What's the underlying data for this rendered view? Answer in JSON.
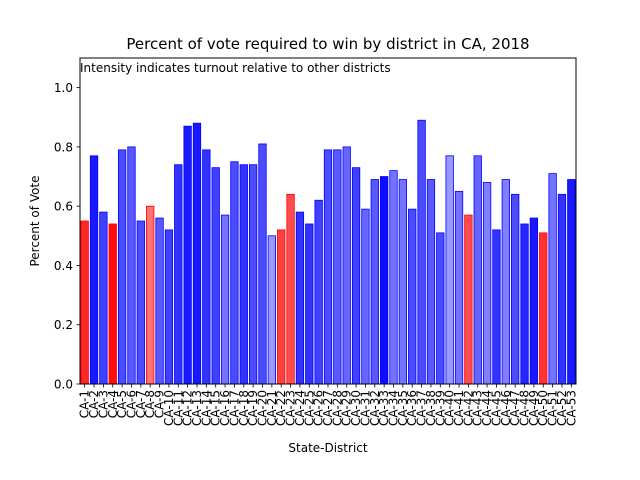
{
  "chart_data": {
    "type": "bar",
    "title": "Percent of vote required to win by district in CA, 2018",
    "annotation": "Intensity indicates turnout relative to other districts",
    "xlabel": "State-District",
    "ylabel": "Percent of Vote",
    "ylim": [
      0,
      1.1
    ],
    "yticks": [
      "0.0",
      "0.2",
      "0.4",
      "0.6",
      "0.8",
      "1.0"
    ],
    "grid": false,
    "colors": {
      "blue": "#0000ff",
      "red": "#ff0000"
    },
    "categories": [
      "CA-1",
      "CA-2",
      "CA-3",
      "CA-4",
      "CA-5",
      "CA-6",
      "CA-7",
      "CA-8",
      "CA-9",
      "CA-10",
      "CA-11",
      "CA-12",
      "CA-13",
      "CA-14",
      "CA-15",
      "CA-16",
      "CA-17",
      "CA-18",
      "CA-19",
      "CA-20",
      "CA-21",
      "CA-22",
      "CA-23",
      "CA-24",
      "CA-25",
      "CA-26",
      "CA-27",
      "CA-28",
      "CA-29",
      "CA-30",
      "CA-31",
      "CA-32",
      "CA-33",
      "CA-34",
      "CA-35",
      "CA-36",
      "CA-37",
      "CA-38",
      "CA-39",
      "CA-40",
      "CA-41",
      "CA-42",
      "CA-43",
      "CA-44",
      "CA-45",
      "CA-46",
      "CA-47",
      "CA-48",
      "CA-49",
      "CA-50",
      "CA-51",
      "CA-52",
      "CA-53"
    ],
    "values": [
      0.55,
      0.77,
      0.58,
      0.54,
      0.79,
      0.8,
      0.55,
      0.6,
      0.56,
      0.52,
      0.74,
      0.87,
      0.88,
      0.79,
      0.73,
      0.57,
      0.75,
      0.74,
      0.74,
      0.81,
      0.5,
      0.52,
      0.64,
      0.58,
      0.54,
      0.62,
      0.79,
      0.79,
      0.8,
      0.73,
      0.59,
      0.69,
      0.7,
      0.72,
      0.69,
      0.59,
      0.89,
      0.69,
      0.51,
      0.77,
      0.65,
      0.57,
      0.77,
      0.68,
      0.52,
      0.69,
      0.64,
      0.54,
      0.56,
      0.51,
      0.71,
      0.64,
      0.69
    ],
    "party": [
      "R",
      "D",
      "D",
      "R",
      "D",
      "D",
      "D",
      "R",
      "D",
      "D",
      "D",
      "D",
      "D",
      "D",
      "D",
      "D",
      "D",
      "D",
      "D",
      "D",
      "D",
      "R",
      "R",
      "D",
      "D",
      "D",
      "D",
      "D",
      "D",
      "D",
      "D",
      "D",
      "D",
      "D",
      "D",
      "D",
      "D",
      "D",
      "D",
      "D",
      "D",
      "R",
      "D",
      "D",
      "D",
      "D",
      "D",
      "D",
      "D",
      "R",
      "D",
      "D",
      "D"
    ],
    "intensity": [
      0.85,
      0.9,
      0.75,
      0.95,
      0.7,
      0.65,
      0.7,
      0.55,
      0.65,
      0.75,
      0.8,
      0.9,
      0.9,
      0.8,
      0.75,
      0.55,
      0.7,
      0.8,
      0.7,
      0.7,
      0.4,
      0.75,
      0.7,
      0.8,
      0.8,
      0.75,
      0.7,
      0.65,
      0.6,
      0.75,
      0.6,
      0.65,
      0.95,
      0.55,
      0.55,
      0.7,
      0.7,
      0.65,
      0.7,
      0.4,
      0.55,
      0.7,
      0.6,
      0.5,
      0.8,
      0.5,
      0.7,
      0.85,
      0.9,
      0.8,
      0.55,
      0.8,
      0.9
    ]
  }
}
